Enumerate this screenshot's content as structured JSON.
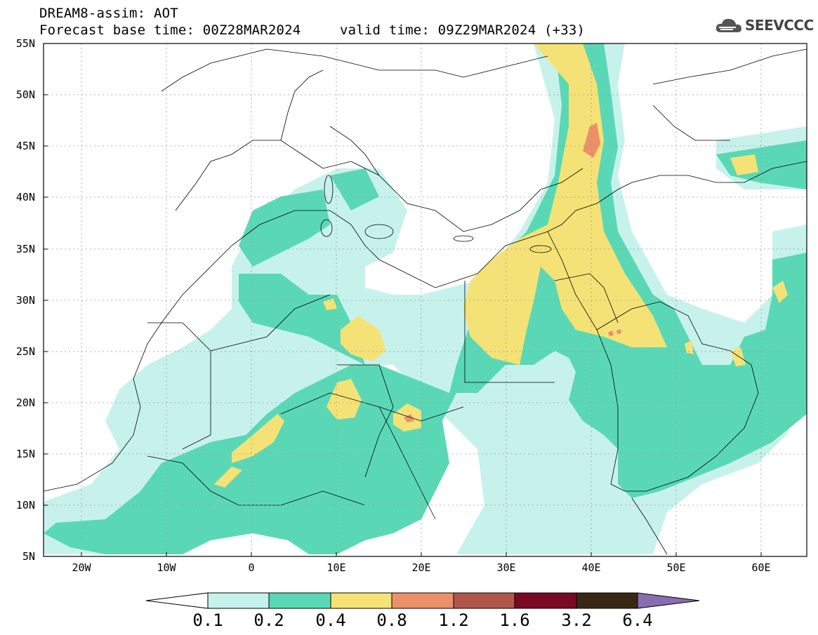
{
  "title": {
    "line1": "DREAM8-assim: AOT",
    "line2a": "Forecast base time: 00Z28MAR2024",
    "line2b": "valid time: 09Z29MAR2024 (+33)"
  },
  "logo": {
    "text": "SEEVCCC",
    "icon": "cloud-icon"
  },
  "map": {
    "lat_labels": [
      "55N",
      "50N",
      "45N",
      "40N",
      "35N",
      "30N",
      "25N",
      "20N",
      "15N",
      "10N",
      "5N"
    ],
    "lon_labels": [
      "20W",
      "10W",
      "0",
      "10E",
      "20E",
      "30E",
      "40E",
      "50E",
      "60E"
    ],
    "lon_range": [
      -25,
      65
    ],
    "lat_range": [
      5,
      55
    ]
  },
  "colorbar": {
    "labels": [
      "0.1",
      "0.2",
      "0.4",
      "0.8",
      "1.2",
      "1.6",
      "3.2",
      "6.4"
    ],
    "colors": [
      "#ffffff",
      "#c7f2ec",
      "#5ad8b5",
      "#f5e276",
      "#eb9069",
      "#b0574b",
      "#7a0a24",
      "#3a2816",
      "#8a6cb0"
    ]
  },
  "legend_colors": {
    "c1": "#c7f2ec",
    "c2": "#5ad8b5",
    "c3": "#f5e276",
    "c4": "#eb9069",
    "c5": "#b0574b"
  }
}
